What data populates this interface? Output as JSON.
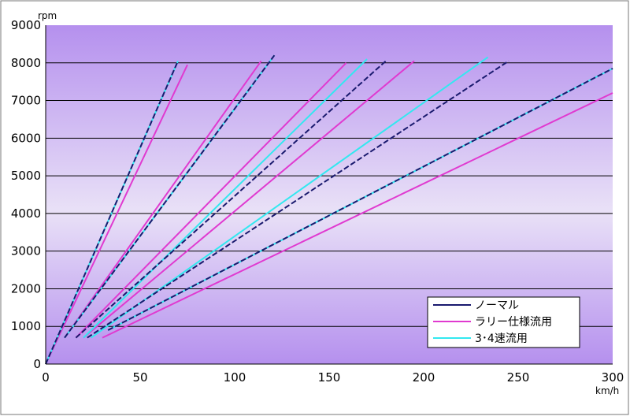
{
  "chart_data": {
    "type": "line",
    "title": "",
    "xlabel": "km/h",
    "ylabel": "rpm",
    "xlim": [
      0,
      300
    ],
    "ylim": [
      0,
      9000
    ],
    "x_ticks": [
      0,
      50,
      100,
      150,
      200,
      250,
      300
    ],
    "y_ticks": [
      0,
      1000,
      2000,
      3000,
      4000,
      5000,
      6000,
      7000,
      8000,
      9000
    ],
    "grid": "horizontal",
    "legend_position": "bottom-right",
    "colors": {
      "ノーマル": "#1a1a6e",
      "ラリー仕様流用": "#e03ad0",
      "3･4速流用": "#33e8f0"
    },
    "legend": [
      "ノーマル",
      "ラリー仕様流用",
      "3･4速流用"
    ],
    "series": [
      {
        "name": "ノーマル",
        "gear": 1,
        "x": [
          0,
          70
        ],
        "y": [
          0,
          8050
        ]
      },
      {
        "name": "ノーマル",
        "gear": 2,
        "x": [
          10,
          121
        ],
        "y": [
          700,
          8200
        ]
      },
      {
        "name": "ノーマル",
        "gear": 3,
        "x": [
          16,
          180
        ],
        "y": [
          700,
          8050
        ]
      },
      {
        "name": "ノーマル",
        "gear": 4,
        "x": [
          22,
          245
        ],
        "y": [
          700,
          8050
        ]
      },
      {
        "name": "ノーマル",
        "gear": 5,
        "x": [
          33,
          300
        ],
        "y": [
          900,
          7850
        ]
      },
      {
        "name": "ラリー仕様流用",
        "gear": 1,
        "x": [
          0,
          75
        ],
        "y": [
          0,
          7950
        ]
      },
      {
        "name": "ラリー仕様流用",
        "gear": 2,
        "x": [
          10,
          114
        ],
        "y": [
          700,
          8050
        ]
      },
      {
        "name": "ラリー仕様流用",
        "gear": 3,
        "x": [
          16,
          159
        ],
        "y": [
          700,
          8000
        ]
      },
      {
        "name": "ラリー仕様流用",
        "gear": 4,
        "x": [
          20,
          195
        ],
        "y": [
          700,
          8050
        ]
      },
      {
        "name": "ラリー仕様流用",
        "gear": 5,
        "x": [
          30,
          300
        ],
        "y": [
          700,
          7200
        ]
      },
      {
        "name": "3･4速流用",
        "gear": 1,
        "x": [
          0,
          70
        ],
        "y": [
          0,
          8050
        ]
      },
      {
        "name": "3･4速流用",
        "gear": 2,
        "x": [
          10,
          121
        ],
        "y": [
          700,
          8200
        ]
      },
      {
        "name": "3･4速流用",
        "gear": 3,
        "x": [
          20,
          170
        ],
        "y": [
          700,
          8100
        ]
      },
      {
        "name": "3･4速流用",
        "gear": 4,
        "x": [
          24,
          234
        ],
        "y": [
          700,
          8150
        ]
      },
      {
        "name": "3･4速流用",
        "gear": 5,
        "x": [
          33,
          300
        ],
        "y": [
          900,
          7850
        ]
      }
    ]
  }
}
